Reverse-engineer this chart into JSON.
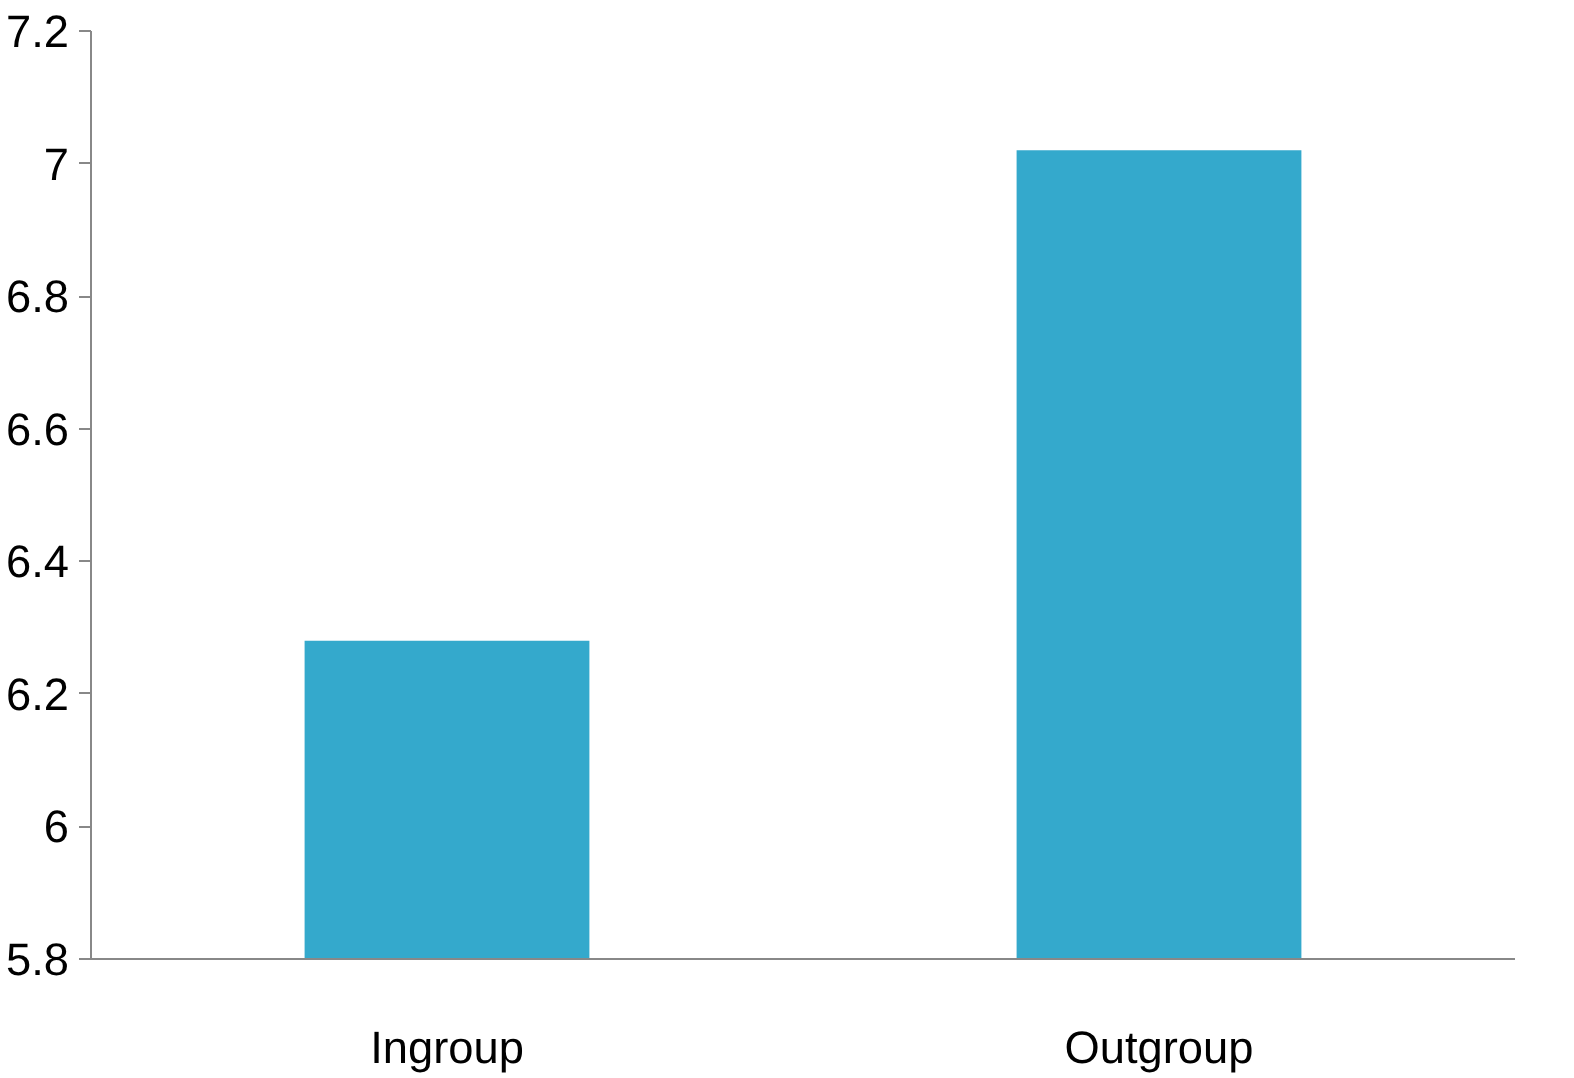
{
  "chart_data": {
    "type": "bar",
    "categories": [
      "Ingroup",
      "Outgroup"
    ],
    "values": [
      6.28,
      7.02
    ],
    "color": "#34a9cc",
    "ylim": [
      5.8,
      7.2
    ],
    "yticks": [
      5.8,
      6,
      6.2,
      6.4,
      6.6,
      6.8,
      7,
      7.2
    ],
    "grid": false
  }
}
